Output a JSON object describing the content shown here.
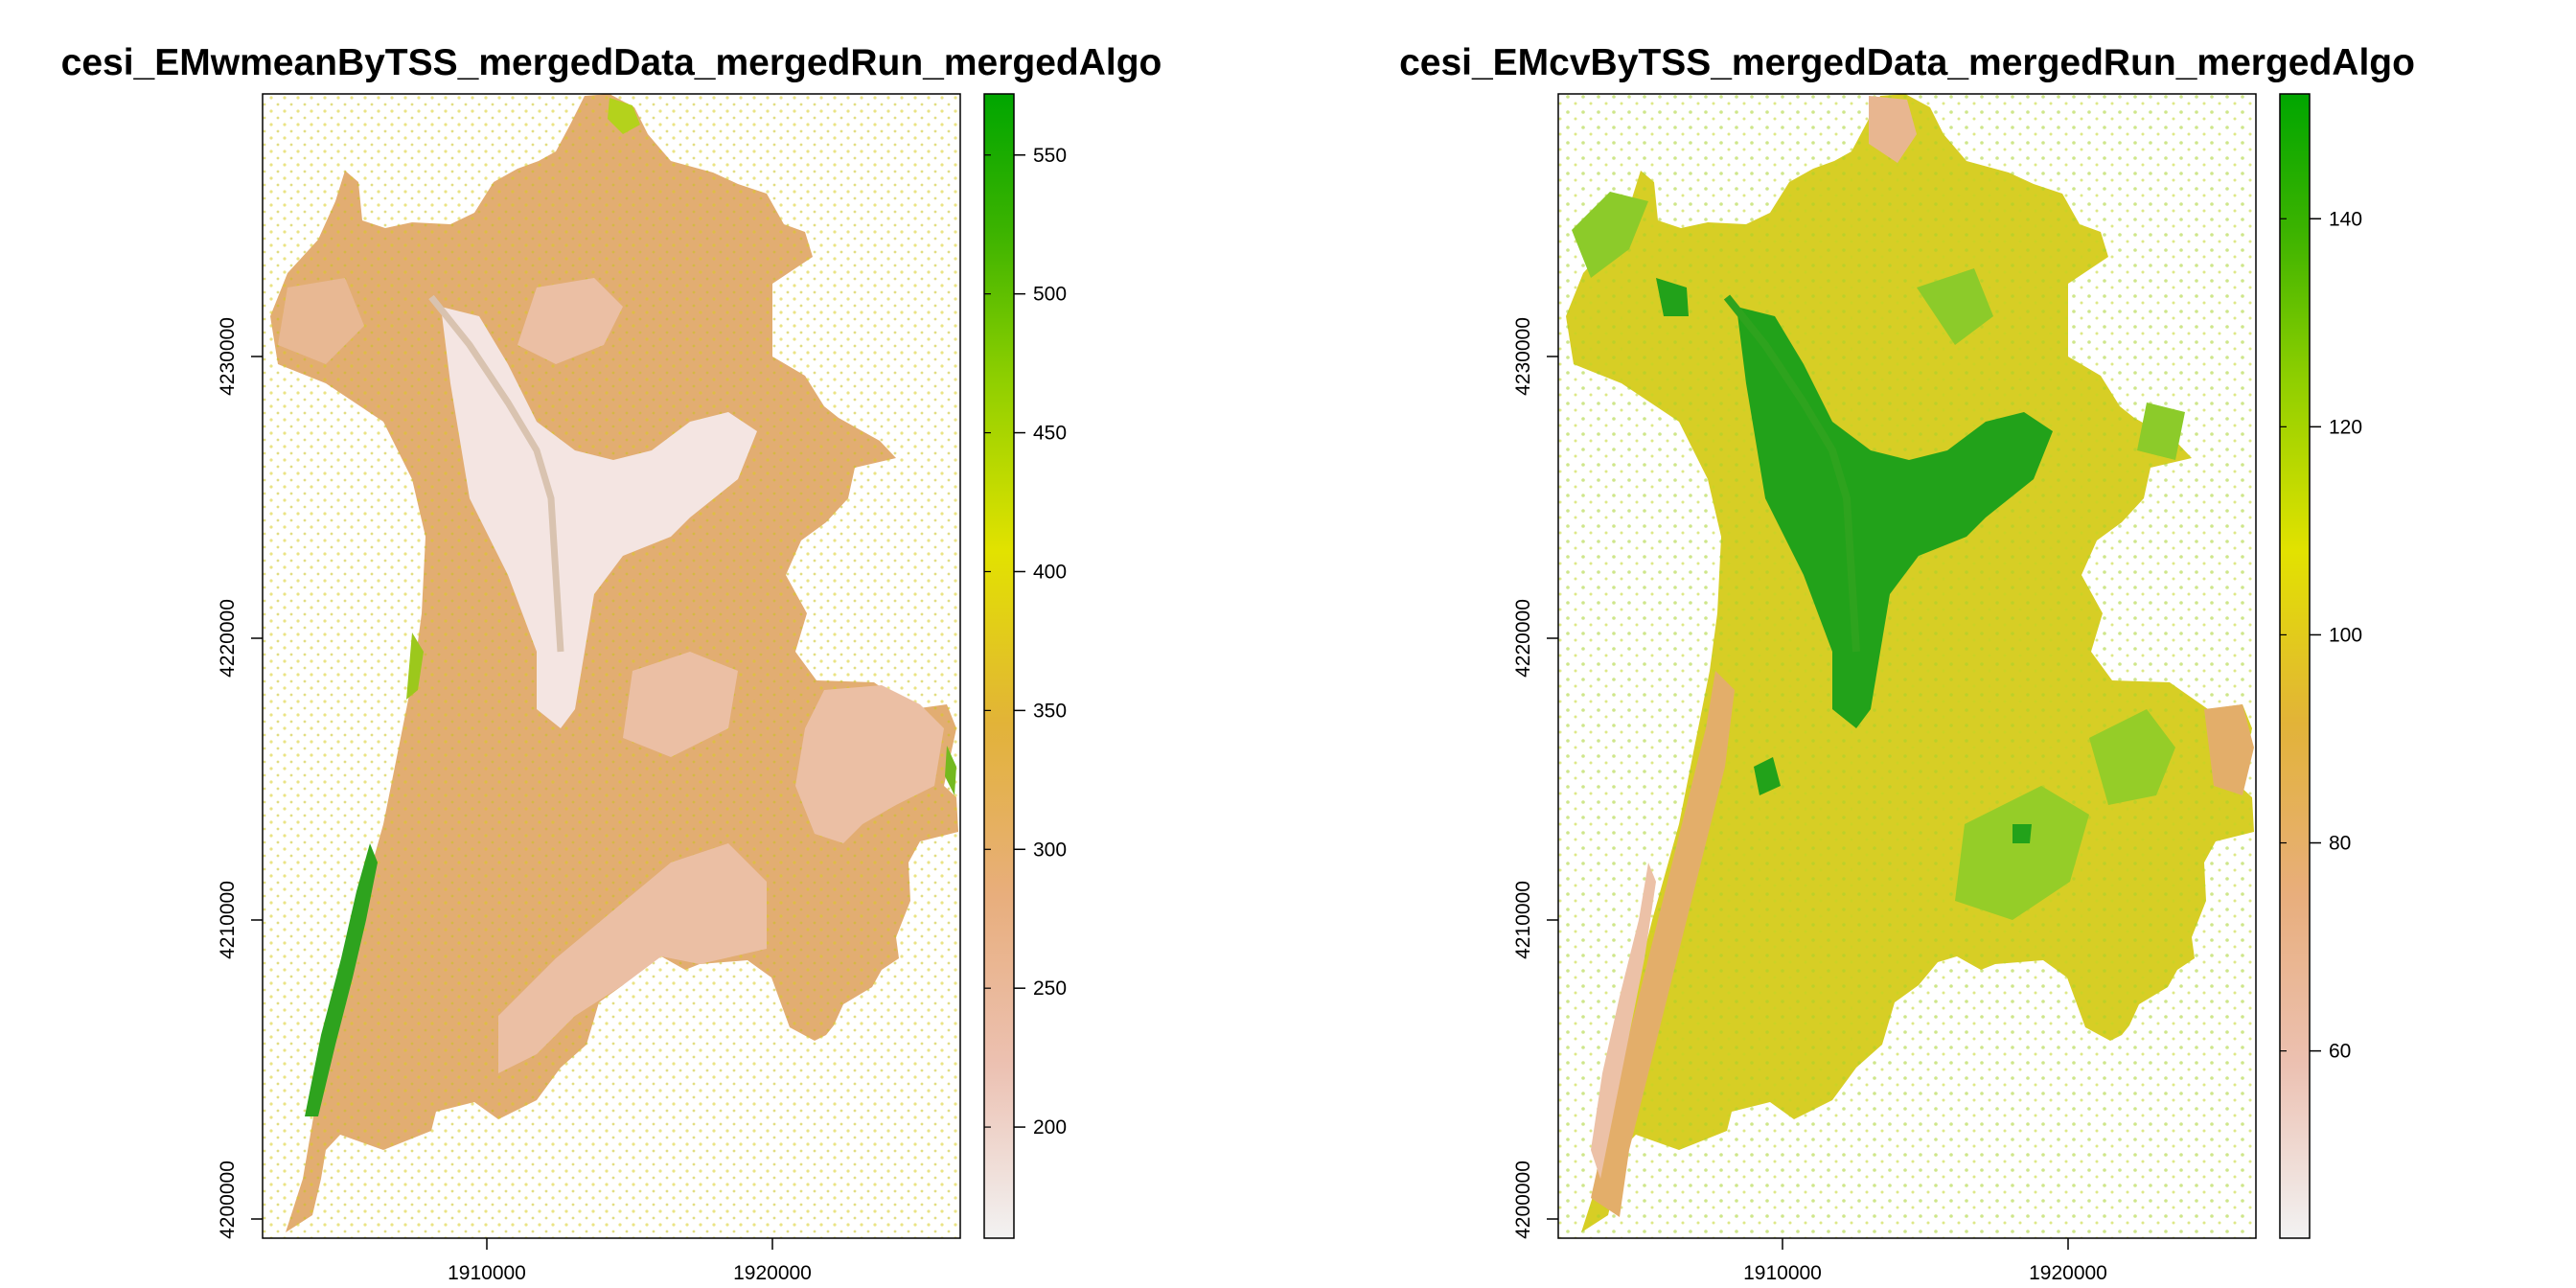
{
  "panels": [
    {
      "title": "cesi_EMwmeanByTSS_mergedData_mergedRun_mergedAlgo",
      "x_ticks": [
        "1910000",
        "1920000"
      ],
      "y_ticks": [
        "4200000",
        "4210000",
        "4220000",
        "4230000"
      ],
      "legend_ticks": [
        "200",
        "250",
        "300",
        "350",
        "400",
        "450",
        "500",
        "550"
      ],
      "legend_range": [
        160,
        572
      ],
      "fill_colors": {
        "base": "#e2ad72",
        "light": "#ebbfa4",
        "pale": "#f4e5e2",
        "yellow": "#d9cc1f",
        "green": "#2ea31e"
      }
    },
    {
      "title": "cesi_EMcvByTSS_mergedData_mergedRun_mergedAlgo",
      "x_ticks": [
        "1910000",
        "1920000"
      ],
      "y_ticks": [
        "4200000",
        "4210000",
        "4220000",
        "4230000"
      ],
      "legend_ticks": [
        "60",
        "80",
        "100",
        "120",
        "140"
      ],
      "legend_range": [
        42,
        152
      ],
      "fill_colors": {
        "base": "#d7ce25",
        "orange": "#e3ae6a",
        "light": "#ecc1a7",
        "green": "#95cd28",
        "darkgreen": "#22a21a"
      }
    }
  ],
  "colormap": [
    "#f2f2f2",
    "#ecc1b2",
    "#e8ae7c",
    "#e2b338",
    "#e2e200",
    "#8fcf00",
    "#3cb300",
    "#00a600"
  ]
}
